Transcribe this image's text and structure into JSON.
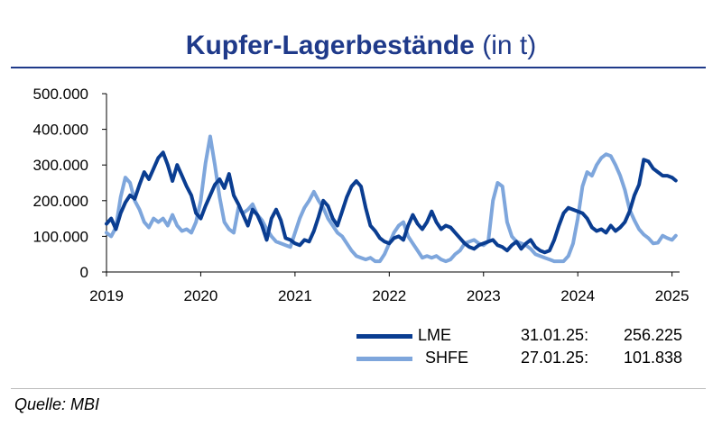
{
  "title": {
    "main": "Kupfer-Lagerbestände",
    "unit": "(in t)"
  },
  "source": "Quelle: MBI",
  "legend": [
    {
      "name": "LME",
      "date": "31.01.25:",
      "value": "256.225"
    },
    {
      "name": "SHFE",
      "date": "27.01.25:",
      "value": "101.838"
    }
  ],
  "chart_data": {
    "type": "line",
    "title": "Kupfer-Lagerbestände (in t)",
    "xlabel": "",
    "ylabel": "",
    "ylim": [
      0,
      500000
    ],
    "xlim": [
      2019.0,
      2025.08
    ],
    "yticks": [
      0,
      100000,
      200000,
      300000,
      400000,
      500000
    ],
    "ytick_labels": [
      "0",
      "100.000",
      "200.000",
      "300.000",
      "400.000",
      "500.000"
    ],
    "xticks": [
      2019,
      2020,
      2021,
      2022,
      2023,
      2024,
      2025
    ],
    "xtick_labels": [
      "2019",
      "2020",
      "2021",
      "2022",
      "2023",
      "2024",
      "2025"
    ],
    "grid": false,
    "legend_position": "bottom-right",
    "series": [
      {
        "name": "LME",
        "color": "#0a3d91",
        "x": [
          2019.0,
          2019.05,
          2019.1,
          2019.15,
          2019.2,
          2019.25,
          2019.3,
          2019.35,
          2019.4,
          2019.45,
          2019.5,
          2019.55,
          2019.6,
          2019.65,
          2019.7,
          2019.75,
          2019.8,
          2019.85,
          2019.9,
          2019.95,
          2020.0,
          2020.05,
          2020.1,
          2020.15,
          2020.2,
          2020.25,
          2020.3,
          2020.35,
          2020.4,
          2020.45,
          2020.5,
          2020.55,
          2020.6,
          2020.65,
          2020.7,
          2020.75,
          2020.8,
          2020.85,
          2020.9,
          2020.95,
          2021.0,
          2021.05,
          2021.1,
          2021.15,
          2021.2,
          2021.25,
          2021.3,
          2021.35,
          2021.4,
          2021.45,
          2021.5,
          2021.55,
          2021.6,
          2021.65,
          2021.7,
          2021.75,
          2021.8,
          2021.85,
          2021.9,
          2021.95,
          2022.0,
          2022.05,
          2022.1,
          2022.15,
          2022.2,
          2022.25,
          2022.3,
          2022.35,
          2022.4,
          2022.45,
          2022.5,
          2022.55,
          2022.6,
          2022.65,
          2022.7,
          2022.75,
          2022.8,
          2022.85,
          2022.9,
          2022.95,
          2023.0,
          2023.05,
          2023.1,
          2023.15,
          2023.2,
          2023.25,
          2023.3,
          2023.35,
          2023.4,
          2023.45,
          2023.5,
          2023.55,
          2023.6,
          2023.65,
          2023.7,
          2023.75,
          2023.8,
          2023.85,
          2023.9,
          2023.95,
          2024.0,
          2024.05,
          2024.1,
          2024.15,
          2024.2,
          2024.25,
          2024.3,
          2024.35,
          2024.4,
          2024.45,
          2024.5,
          2024.55,
          2024.6,
          2024.65,
          2024.7,
          2024.75,
          2024.8,
          2024.85,
          2024.9,
          2024.95,
          2025.0,
          2025.04
        ],
        "values": [
          135000,
          150000,
          120000,
          165000,
          195000,
          215000,
          205000,
          245000,
          280000,
          260000,
          290000,
          320000,
          335000,
          300000,
          255000,
          300000,
          270000,
          240000,
          215000,
          165000,
          150000,
          185000,
          215000,
          245000,
          260000,
          235000,
          275000,
          215000,
          190000,
          160000,
          130000,
          175000,
          160000,
          130000,
          90000,
          150000,
          175000,
          145000,
          95000,
          90000,
          80000,
          75000,
          90000,
          85000,
          115000,
          155000,
          200000,
          185000,
          150000,
          130000,
          170000,
          210000,
          240000,
          255000,
          240000,
          180000,
          130000,
          115000,
          95000,
          85000,
          80000,
          95000,
          100000,
          90000,
          130000,
          160000,
          135000,
          120000,
          140000,
          170000,
          140000,
          120000,
          130000,
          125000,
          110000,
          95000,
          80000,
          70000,
          65000,
          75000,
          80000,
          85000,
          90000,
          75000,
          70000,
          60000,
          75000,
          85000,
          65000,
          80000,
          90000,
          70000,
          60000,
          55000,
          60000,
          90000,
          130000,
          165000,
          180000,
          175000,
          170000,
          165000,
          150000,
          125000,
          115000,
          120000,
          110000,
          130000,
          115000,
          125000,
          140000,
          170000,
          215000,
          245000,
          315000,
          310000,
          290000,
          280000,
          270000,
          270000,
          265000,
          256225
        ]
      },
      {
        "name": "SHFE",
        "color": "#7ea6dc",
        "x": [
          2019.0,
          2019.05,
          2019.1,
          2019.15,
          2019.2,
          2019.25,
          2019.3,
          2019.35,
          2019.4,
          2019.45,
          2019.5,
          2019.55,
          2019.6,
          2019.65,
          2019.7,
          2019.75,
          2019.8,
          2019.85,
          2019.9,
          2019.95,
          2020.0,
          2020.05,
          2020.1,
          2020.15,
          2020.2,
          2020.25,
          2020.3,
          2020.35,
          2020.4,
          2020.45,
          2020.5,
          2020.55,
          2020.6,
          2020.65,
          2020.7,
          2020.75,
          2020.8,
          2020.85,
          2020.9,
          2020.95,
          2021.0,
          2021.05,
          2021.1,
          2021.15,
          2021.2,
          2021.25,
          2021.3,
          2021.35,
          2021.4,
          2021.45,
          2021.5,
          2021.55,
          2021.6,
          2021.65,
          2021.7,
          2021.75,
          2021.8,
          2021.85,
          2021.9,
          2021.95,
          2022.0,
          2022.05,
          2022.1,
          2022.15,
          2022.2,
          2022.25,
          2022.3,
          2022.35,
          2022.4,
          2022.45,
          2022.5,
          2022.55,
          2022.6,
          2022.65,
          2022.7,
          2022.75,
          2022.8,
          2022.85,
          2022.9,
          2022.95,
          2023.0,
          2023.05,
          2023.1,
          2023.15,
          2023.2,
          2023.25,
          2023.3,
          2023.35,
          2023.4,
          2023.45,
          2023.5,
          2023.55,
          2023.6,
          2023.65,
          2023.7,
          2023.75,
          2023.8,
          2023.85,
          2023.9,
          2023.95,
          2024.0,
          2024.05,
          2024.1,
          2024.15,
          2024.2,
          2024.25,
          2024.3,
          2024.35,
          2024.4,
          2024.45,
          2024.5,
          2024.55,
          2024.6,
          2024.65,
          2024.7,
          2024.75,
          2024.8,
          2024.85,
          2024.9,
          2024.95,
          2025.0,
          2025.04
        ],
        "values": [
          110000,
          100000,
          125000,
          210000,
          265000,
          250000,
          200000,
          175000,
          140000,
          125000,
          150000,
          140000,
          150000,
          130000,
          160000,
          130000,
          115000,
          120000,
          110000,
          140000,
          200000,
          305000,
          380000,
          300000,
          210000,
          140000,
          120000,
          110000,
          180000,
          165000,
          175000,
          190000,
          160000,
          145000,
          120000,
          100000,
          85000,
          80000,
          75000,
          70000,
          110000,
          150000,
          180000,
          200000,
          225000,
          200000,
          180000,
          150000,
          130000,
          110000,
          100000,
          80000,
          60000,
          45000,
          40000,
          35000,
          40000,
          30000,
          30000,
          50000,
          80000,
          110000,
          130000,
          140000,
          100000,
          80000,
          60000,
          40000,
          45000,
          40000,
          45000,
          35000,
          30000,
          35000,
          50000,
          60000,
          80000,
          85000,
          90000,
          80000,
          75000,
          85000,
          200000,
          250000,
          240000,
          140000,
          100000,
          85000,
          80000,
          75000,
          65000,
          50000,
          45000,
          40000,
          35000,
          30000,
          30000,
          30000,
          45000,
          80000,
          150000,
          240000,
          280000,
          270000,
          300000,
          320000,
          330000,
          325000,
          300000,
          270000,
          230000,
          175000,
          145000,
          120000,
          105000,
          95000,
          80000,
          82000,
          101838,
          95000,
          90000,
          101838
        ]
      }
    ]
  }
}
